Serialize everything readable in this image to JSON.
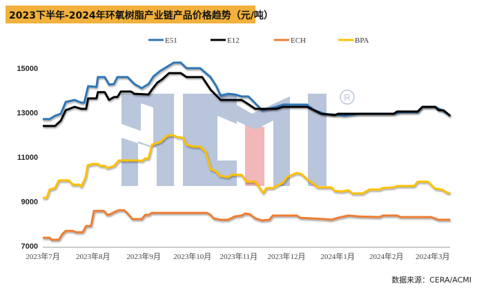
{
  "chart_data": {
    "type": "line",
    "title": "2023下半年-2024年环氧树脂产业链产品价格趋势（元/吨）",
    "xlabel": "",
    "ylabel": "",
    "x_unit": "months since 2023年7月",
    "xlim": [
      0,
      8.36
    ],
    "ylim": [
      7000,
      15700
    ],
    "yticks": [
      15000,
      13000,
      11000,
      9000,
      7000
    ],
    "ytick_labels": [
      "15000",
      "13000",
      "11000",
      "9000",
      "7000"
    ],
    "xticks": [
      0,
      1.03,
      2.07,
      3.07,
      4.02,
      5.0,
      6.05,
      7.05,
      8.0
    ],
    "xtick_labels": [
      "2023年7月",
      "2023年8月",
      "2023年9月",
      "2023年10月",
      "2023年11月",
      "2023年12月",
      "2024年1月",
      "2024年2月",
      "2024年3月"
    ],
    "legend_position": "top",
    "grid": false,
    "series": [
      {
        "name": "E51",
        "color": "#2e75b6",
        "points": [
          [
            0,
            12710
          ],
          [
            0.14,
            12710
          ],
          [
            0.25,
            12860
          ],
          [
            0.37,
            12950
          ],
          [
            0.47,
            13480
          ],
          [
            0.65,
            13570
          ],
          [
            0.79,
            13450
          ],
          [
            0.85,
            13450
          ],
          [
            0.93,
            14190
          ],
          [
            1.1,
            14160
          ],
          [
            1.13,
            14600
          ],
          [
            1.27,
            14600
          ],
          [
            1.36,
            14260
          ],
          [
            1.46,
            14290
          ],
          [
            1.53,
            14600
          ],
          [
            1.74,
            14600
          ],
          [
            1.88,
            14290
          ],
          [
            2.03,
            14100
          ],
          [
            2.17,
            14290
          ],
          [
            2.27,
            14630
          ],
          [
            2.41,
            14880
          ],
          [
            2.59,
            15120
          ],
          [
            2.69,
            15250
          ],
          [
            2.83,
            15250
          ],
          [
            2.95,
            15000
          ],
          [
            3.23,
            15000
          ],
          [
            3.44,
            14600
          ],
          [
            3.56,
            14190
          ],
          [
            3.65,
            13760
          ],
          [
            3.8,
            13850
          ],
          [
            3.94,
            13820
          ],
          [
            4.08,
            13730
          ],
          [
            4.22,
            13730
          ],
          [
            4.36,
            13420
          ],
          [
            4.5,
            13110
          ],
          [
            4.79,
            13260
          ],
          [
            4.93,
            13360
          ],
          [
            5.42,
            13360
          ],
          [
            5.57,
            13110
          ],
          [
            5.78,
            12950
          ],
          [
            6.2,
            12860
          ],
          [
            6.49,
            12950
          ],
          [
            7.2,
            12950
          ],
          [
            7.34,
            13020
          ],
          [
            7.69,
            13020
          ],
          [
            7.79,
            13260
          ],
          [
            8.05,
            13260
          ],
          [
            8.19,
            13110
          ],
          [
            8.36,
            12860
          ]
        ]
      },
      {
        "name": "E12",
        "color": "#000000",
        "points": [
          [
            0,
            12400
          ],
          [
            0.25,
            12400
          ],
          [
            0.37,
            12640
          ],
          [
            0.47,
            13110
          ],
          [
            0.65,
            13260
          ],
          [
            0.79,
            13170
          ],
          [
            0.89,
            13170
          ],
          [
            0.93,
            13640
          ],
          [
            1.1,
            13640
          ],
          [
            1.13,
            13920
          ],
          [
            1.27,
            13920
          ],
          [
            1.36,
            13570
          ],
          [
            1.46,
            13700
          ],
          [
            1.53,
            13700
          ],
          [
            1.6,
            13950
          ],
          [
            1.81,
            13950
          ],
          [
            1.88,
            13850
          ],
          [
            2.17,
            13820
          ],
          [
            2.24,
            14040
          ],
          [
            2.35,
            14350
          ],
          [
            2.45,
            14500
          ],
          [
            2.59,
            14780
          ],
          [
            2.83,
            14780
          ],
          [
            2.95,
            14600
          ],
          [
            3.27,
            14600
          ],
          [
            3.44,
            14040
          ],
          [
            3.58,
            13730
          ],
          [
            3.65,
            13570
          ],
          [
            4.08,
            13570
          ],
          [
            4.19,
            13420
          ],
          [
            4.36,
            13170
          ],
          [
            4.79,
            13170
          ],
          [
            4.93,
            13260
          ],
          [
            5.42,
            13260
          ],
          [
            5.57,
            13110
          ],
          [
            5.71,
            12950
          ],
          [
            5.99,
            12890
          ],
          [
            6.06,
            12950
          ],
          [
            7.2,
            12950
          ],
          [
            7.27,
            13050
          ],
          [
            7.69,
            13050
          ],
          [
            7.79,
            13260
          ],
          [
            8.05,
            13260
          ],
          [
            8.12,
            13110
          ],
          [
            8.22,
            13110
          ],
          [
            8.36,
            12860
          ]
        ]
      },
      {
        "name": "ECH",
        "color": "#ed7d31",
        "points": [
          [
            0,
            7370
          ],
          [
            0.14,
            7370
          ],
          [
            0.18,
            7280
          ],
          [
            0.33,
            7280
          ],
          [
            0.4,
            7530
          ],
          [
            0.47,
            7680
          ],
          [
            0.61,
            7680
          ],
          [
            0.68,
            7620
          ],
          [
            0.82,
            7620
          ],
          [
            0.89,
            7900
          ],
          [
            0.99,
            7900
          ],
          [
            1.05,
            8580
          ],
          [
            1.25,
            8580
          ],
          [
            1.32,
            8400
          ],
          [
            1.39,
            8430
          ],
          [
            1.46,
            8520
          ],
          [
            1.56,
            8610
          ],
          [
            1.67,
            8610
          ],
          [
            1.74,
            8460
          ],
          [
            1.84,
            8210
          ],
          [
            2.03,
            8210
          ],
          [
            2.1,
            8400
          ],
          [
            2.17,
            8400
          ],
          [
            2.24,
            8490
          ],
          [
            3.37,
            8490
          ],
          [
            3.44,
            8400
          ],
          [
            3.51,
            8240
          ],
          [
            3.65,
            8180
          ],
          [
            3.8,
            8180
          ],
          [
            3.94,
            8330
          ],
          [
            4.08,
            8370
          ],
          [
            4.15,
            8460
          ],
          [
            4.25,
            8430
          ],
          [
            4.36,
            8240
          ],
          [
            4.5,
            8150
          ],
          [
            4.65,
            8180
          ],
          [
            4.72,
            8370
          ],
          [
            5.21,
            8370
          ],
          [
            5.28,
            8270
          ],
          [
            5.78,
            8210
          ],
          [
            5.92,
            8180
          ],
          [
            6.06,
            8270
          ],
          [
            6.27,
            8370
          ],
          [
            6.49,
            8330
          ],
          [
            6.91,
            8300
          ],
          [
            6.98,
            8370
          ],
          [
            7.27,
            8370
          ],
          [
            7.34,
            8300
          ],
          [
            7.97,
            8300
          ],
          [
            8.12,
            8180
          ],
          [
            8.36,
            8180
          ]
        ]
      },
      {
        "name": "BPA",
        "color": "#ffc000",
        "points": [
          [
            0,
            9170
          ],
          [
            0.08,
            9170
          ],
          [
            0.14,
            9540
          ],
          [
            0.25,
            9610
          ],
          [
            0.33,
            9950
          ],
          [
            0.54,
            9950
          ],
          [
            0.61,
            9760
          ],
          [
            0.75,
            9760
          ],
          [
            0.79,
            9670
          ],
          [
            0.88,
            10100
          ],
          [
            0.92,
            10630
          ],
          [
            1.03,
            10690
          ],
          [
            1.13,
            10690
          ],
          [
            1.18,
            10600
          ],
          [
            1.27,
            10600
          ],
          [
            1.32,
            10510
          ],
          [
            1.46,
            10600
          ],
          [
            1.56,
            10850
          ],
          [
            1.95,
            10850
          ],
          [
            2.03,
            10820
          ],
          [
            2.1,
            10940
          ],
          [
            2.17,
            10940
          ],
          [
            2.24,
            11560
          ],
          [
            2.41,
            11680
          ],
          [
            2.55,
            11960
          ],
          [
            2.66,
            11990
          ],
          [
            2.76,
            11900
          ],
          [
            2.88,
            11870
          ],
          [
            2.95,
            11560
          ],
          [
            3.09,
            11470
          ],
          [
            3.23,
            11470
          ],
          [
            3.34,
            11250
          ],
          [
            3.44,
            10470
          ],
          [
            3.56,
            10350
          ],
          [
            3.63,
            10160
          ],
          [
            3.8,
            10100
          ],
          [
            3.87,
            10200
          ],
          [
            4.08,
            10200
          ],
          [
            4.18,
            9890
          ],
          [
            4.36,
            9890
          ],
          [
            4.45,
            9610
          ],
          [
            4.52,
            9390
          ],
          [
            4.59,
            9610
          ],
          [
            4.72,
            9610
          ],
          [
            4.79,
            9700
          ],
          [
            4.93,
            9850
          ],
          [
            5.0,
            10070
          ],
          [
            5.07,
            10160
          ],
          [
            5.21,
            10290
          ],
          [
            5.31,
            10230
          ],
          [
            5.42,
            10010
          ],
          [
            5.52,
            9850
          ],
          [
            5.64,
            9640
          ],
          [
            5.92,
            9640
          ],
          [
            5.99,
            9480
          ],
          [
            6.13,
            9450
          ],
          [
            6.2,
            9480
          ],
          [
            6.27,
            9510
          ],
          [
            6.35,
            9360
          ],
          [
            6.56,
            9360
          ],
          [
            6.7,
            9540
          ],
          [
            6.91,
            9540
          ],
          [
            6.98,
            9610
          ],
          [
            7.2,
            9640
          ],
          [
            7.27,
            9700
          ],
          [
            7.62,
            9700
          ],
          [
            7.69,
            9890
          ],
          [
            7.9,
            9890
          ],
          [
            8.05,
            9580
          ],
          [
            8.19,
            9540
          ],
          [
            8.3,
            9390
          ],
          [
            8.36,
            9390
          ]
        ]
      }
    ]
  },
  "watermark": "ACMI®",
  "source": "数据来源：CERA/ACMI"
}
